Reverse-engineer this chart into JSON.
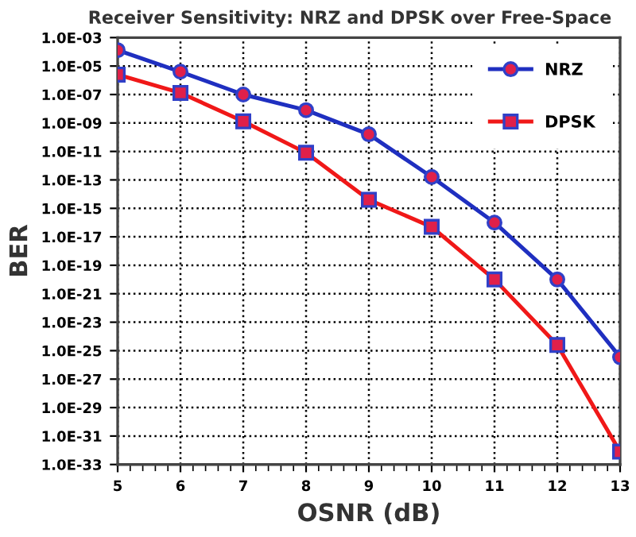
{
  "chart_data": {
    "type": "line",
    "title": "Receiver Sensitivity: NRZ and DPSK over Free-Space",
    "xlabel": "OSNR (dB)",
    "ylabel": "BER",
    "x": [
      5,
      6,
      7,
      8,
      9,
      10,
      11,
      12,
      13
    ],
    "series": [
      {
        "name": "NRZ",
        "color": "#1f2fc0",
        "marker": "circle",
        "values": [
          0.00013,
          4e-06,
          1e-07,
          8e-09,
          1.6e-10,
          1.6e-13,
          1e-16,
          1e-20,
          3.5e-26
        ]
      },
      {
        "name": "DPSK",
        "color": "#f01818",
        "marker": "square",
        "values": [
          2.5e-06,
          1.3e-07,
          1.3e-09,
          8e-12,
          4e-15,
          5e-17,
          1e-20,
          2.5e-25,
          8e-33
        ]
      }
    ],
    "log": "y",
    "xlim": [
      5,
      13
    ],
    "xticks": [
      5,
      6,
      7,
      8,
      9,
      10,
      11,
      12,
      13
    ],
    "ylim": [
      1e-33,
      0.001
    ],
    "yticks": [
      {
        "value": 1e-33,
        "label": "1.0E-33"
      },
      {
        "value": 1e-31,
        "label": "1.0E-31"
      },
      {
        "value": 1e-29,
        "label": "1.0E-29"
      },
      {
        "value": 1e-27,
        "label": "1.0E-27"
      },
      {
        "value": 1e-25,
        "label": "1.0E-25"
      },
      {
        "value": 1e-23,
        "label": "1.0E-23"
      },
      {
        "value": 1e-21,
        "label": "1.0E-21"
      },
      {
        "value": 1e-19,
        "label": "1.0E-19"
      },
      {
        "value": 1e-17,
        "label": "1.0E-17"
      },
      {
        "value": 1e-15,
        "label": "1.0E-15"
      },
      {
        "value": 1e-13,
        "label": "1.0E-13"
      },
      {
        "value": 1e-11,
        "label": "1.0E-11"
      },
      {
        "value": 1e-09,
        "label": "1.0E-09"
      },
      {
        "value": 1e-07,
        "label": "1.0E-07"
      },
      {
        "value": 1e-05,
        "label": "1.0E-05"
      },
      {
        "value": 0.001,
        "label": "1.0E-03"
      }
    ],
    "grid": true,
    "legend": "top right",
    "line_style": "solid"
  }
}
